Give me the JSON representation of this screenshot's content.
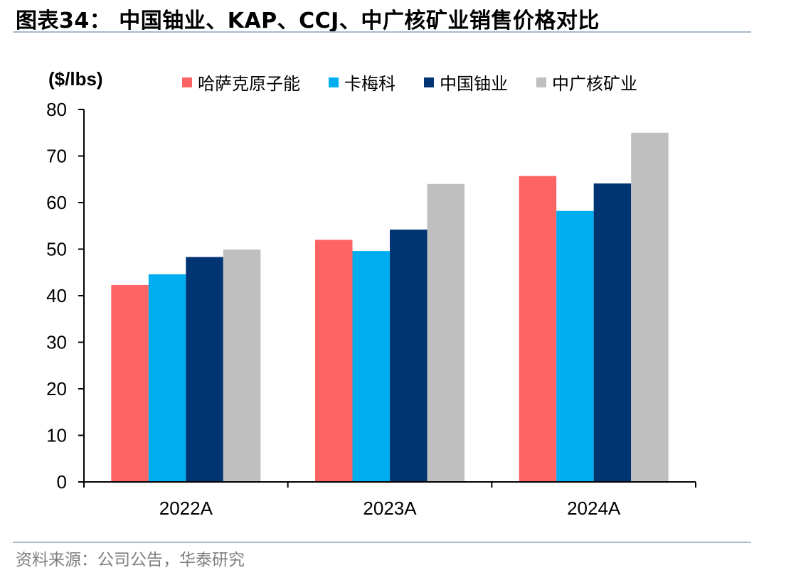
{
  "figure": {
    "title": "图表34：  中国铀业、KAP、CCJ、中广核矿业销售价格对比",
    "source": "资料来源：公司公告，华泰研究"
  },
  "chart_data": {
    "type": "bar",
    "unit_label": "($/lbs)",
    "categories": [
      "2022A",
      "2023A",
      "2024A"
    ],
    "ylim": [
      0,
      80
    ],
    "yticks": [
      0,
      10,
      20,
      30,
      40,
      50,
      60,
      70,
      80
    ],
    "grid": false,
    "legend_position": "top",
    "series": [
      {
        "name": "哈萨克原子能",
        "color": "#ff6464",
        "values": [
          42.3,
          52.0,
          65.7
        ]
      },
      {
        "name": "卡梅科",
        "color": "#00aeef",
        "values": [
          44.6,
          49.6,
          58.2
        ]
      },
      {
        "name": "中国铀业",
        "color": "#003473",
        "values": [
          48.3,
          54.2,
          64.1
        ]
      },
      {
        "name": "中广核矿业",
        "color": "#bfbfbf",
        "values": [
          49.9,
          64.0,
          75.0
        ]
      }
    ]
  }
}
